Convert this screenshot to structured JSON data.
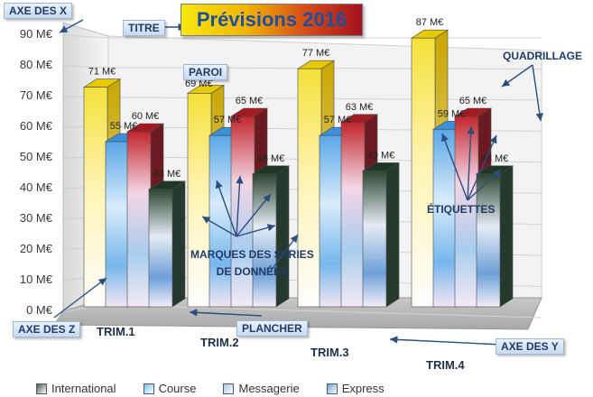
{
  "chart_data": {
    "type": "bar",
    "title": "Prévisions 2016",
    "categories": [
      "TRIM.1",
      "TRIM.2",
      "TRIM.3",
      "TRIM.4"
    ],
    "series": [
      {
        "name": "International",
        "values": [
          71,
          69,
          77,
          87
        ],
        "color": "#e8d020",
        "labels": [
          "71 M€",
          "",
          "77 M€",
          "87 M€"
        ]
      },
      {
        "name": "Course",
        "values": [
          55,
          57,
          57,
          59
        ],
        "color": "#6fb3e8",
        "labels": [
          "55 M€",
          "57 M€",
          "57 M€",
          "59 M€"
        ]
      },
      {
        "name": "Messagerie",
        "values": [
          60,
          65,
          63,
          65
        ],
        "color": "#c0222a",
        "labels": [
          "60 M€",
          "65 M€",
          "63 M€",
          "65 M€"
        ]
      },
      {
        "name": "Express",
        "values": [
          43,
          48,
          49,
          48
        ],
        "color": "#2f4a35",
        "labels": [
          "43 M€",
          "48 M€",
          "49 M€",
          "48 M€"
        ]
      }
    ],
    "ylim": [
      0,
      90
    ],
    "yticks": [
      "0 M€",
      "10 M€",
      "20 M€",
      "30 M€",
      "40 M€",
      "50 M€",
      "60 M€",
      "70 M€",
      "80 M€",
      "90 M€"
    ],
    "grid": true,
    "legend_position": "bottom"
  },
  "legend": [
    {
      "label": "International",
      "color": "#4a5a4a"
    },
    {
      "label": "Course",
      "color": "#7fc0ee"
    },
    {
      "label": "Messagerie",
      "color": "#a9c6ea"
    },
    {
      "label": "Express",
      "color": "#6f9fd6"
    }
  ],
  "annotations": {
    "axe_x": "AXE DES X",
    "titre": "TITRE",
    "paroi": "PAROI",
    "quadrillage": "QUADRILLAGE",
    "etiquettes": "ÉTIQUETTES",
    "marques_line1": "MARQUES DES SÉRIES",
    "marques_line2": "DE DONNÉES",
    "plancher": "PLANCHER",
    "axe_z": "AXE DES Z",
    "axe_y": "AXE DES Y",
    "partial_label": "69 M€"
  }
}
